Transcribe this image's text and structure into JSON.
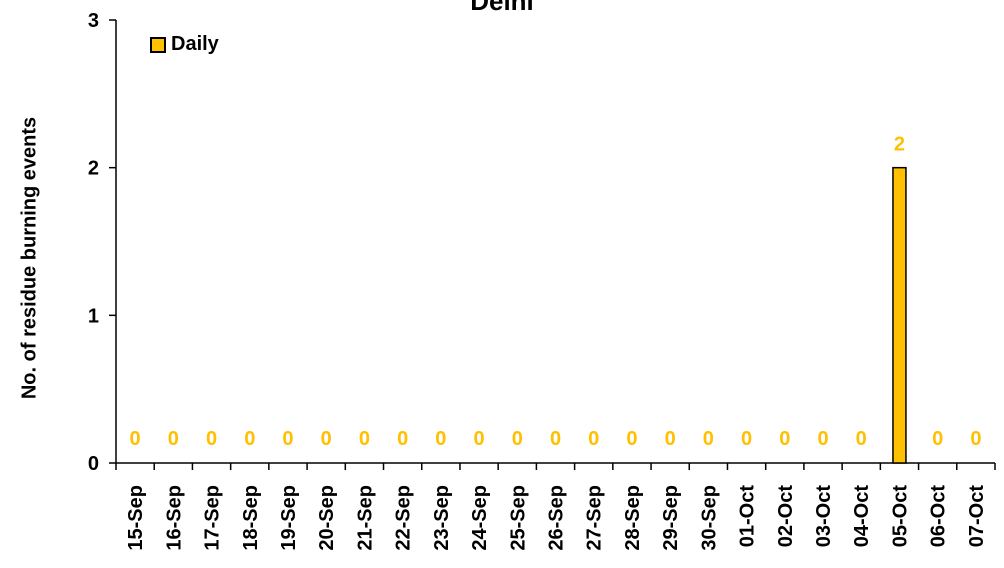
{
  "chart_data": {
    "type": "bar",
    "title": "Delhi",
    "ylabel": "No. of residue burning events",
    "xlabel": "",
    "categories": [
      "15-Sep",
      "16-Sep",
      "17-Sep",
      "18-Sep",
      "19-Sep",
      "20-Sep",
      "21-Sep",
      "22-Sep",
      "23-Sep",
      "24-Sep",
      "25-Sep",
      "26-Sep",
      "27-Sep",
      "28-Sep",
      "29-Sep",
      "30-Sep",
      "01-Oct",
      "02-Oct",
      "03-Oct",
      "04-Oct",
      "05-Oct",
      "06-Oct",
      "07-Oct"
    ],
    "series": [
      {
        "name": "Daily",
        "color": "#FFC000",
        "values": [
          0,
          0,
          0,
          0,
          0,
          0,
          0,
          0,
          0,
          0,
          0,
          0,
          0,
          0,
          0,
          0,
          0,
          0,
          0,
          0,
          2,
          0,
          0
        ]
      }
    ],
    "ylim": [
      0,
      3
    ],
    "yticks": [
      0,
      1,
      2,
      3
    ],
    "data_labels": true,
    "data_label_color": "#FFC000",
    "grid": false,
    "legend_position": "top-left"
  }
}
